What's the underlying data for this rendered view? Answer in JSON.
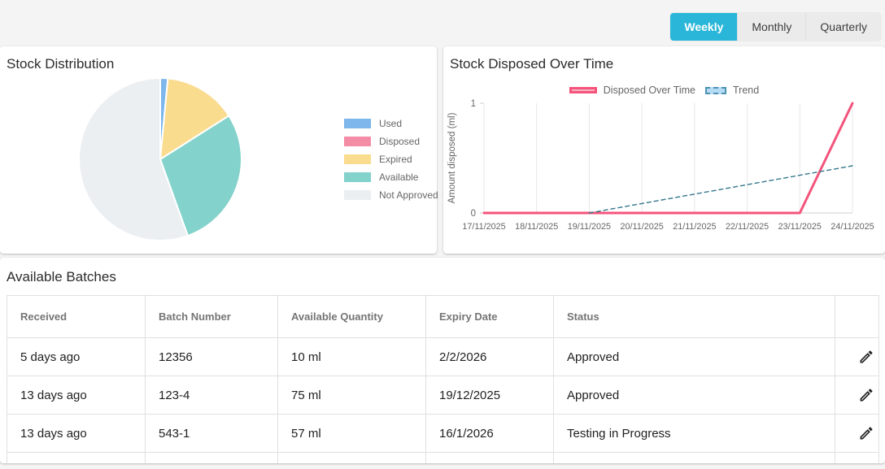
{
  "toolbar": {
    "tabs": [
      {
        "label": "Weekly",
        "active": true
      },
      {
        "label": "Monthly",
        "active": false
      },
      {
        "label": "Quarterly",
        "active": false
      }
    ],
    "active_color": "#29b6d8"
  },
  "chart_data": [
    {
      "type": "pie",
      "title": "Stock Distribution",
      "labels": [
        "Used",
        "Disposed",
        "Expired",
        "Available",
        "Not Approved"
      ],
      "values": [
        1.5,
        0,
        14.5,
        28.5,
        55.5
      ],
      "unit": "percent-estimate",
      "colors": [
        "#7DB7EB",
        "#F48CA6",
        "#FADC8F",
        "#83D2CB",
        "#EBEFF2"
      ],
      "legend_position": "right"
    },
    {
      "type": "line",
      "title": "Stock Disposed Over Time",
      "x": [
        "17/11/2025",
        "18/11/2025",
        "19/11/2025",
        "20/11/2025",
        "21/11/2025",
        "22/11/2025",
        "23/11/2025",
        "24/11/2025"
      ],
      "series": [
        {
          "name": "Disposed Over Time",
          "values": [
            0,
            0,
            0,
            0,
            0,
            0,
            0,
            1
          ],
          "color": "#F4547C",
          "style": "solid",
          "width": 3
        },
        {
          "name": "Trend",
          "values": [
            null,
            null,
            0,
            0.086,
            0.172,
            0.258,
            0.344,
            0.43
          ],
          "color": "#35788C",
          "style": "dashed",
          "width": 1.4
        }
      ],
      "ylabel": "Amount disposed (ml)",
      "ylim": [
        0,
        1
      ],
      "yticks": [
        "0",
        "1"
      ],
      "grid": "vertical",
      "legend_position": "top"
    }
  ],
  "batches": {
    "title": "Available Batches",
    "columns": [
      "Received",
      "Batch Number",
      "Available Quantity",
      "Expiry Date",
      "Status",
      ""
    ],
    "rows": [
      {
        "received": "5 days ago",
        "batch_number": "12356",
        "available_quantity": "10 ml",
        "expiry_date": "2/2/2026",
        "status": "Approved"
      },
      {
        "received": "13 days ago",
        "batch_number": "123-4",
        "available_quantity": "75 ml",
        "expiry_date": "19/12/2025",
        "status": "Approved"
      },
      {
        "received": "13 days ago",
        "batch_number": "543-1",
        "available_quantity": "57 ml",
        "expiry_date": "16/1/2026",
        "status": "Testing in Progress"
      }
    ]
  }
}
